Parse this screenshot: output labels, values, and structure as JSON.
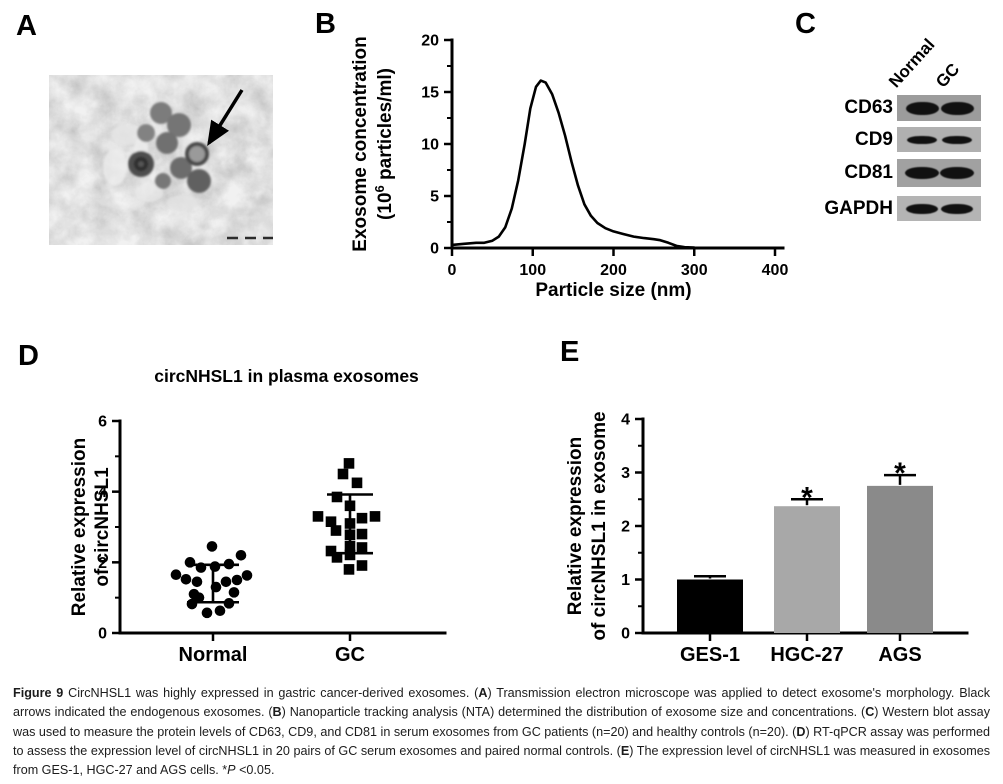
{
  "panels": {
    "a": {
      "label": "A",
      "content": "transmission electron microscope image of exosomes",
      "arrow": "black arrow pointing to exosome",
      "scalebar_dashes": 3
    },
    "b": {
      "label": "B"
    },
    "c": {
      "label": "C",
      "lanes": [
        "Normal",
        "GC"
      ],
      "rows": [
        {
          "protein": "CD63",
          "strip_bg": "#9c9c9c",
          "band_width": 33,
          "band_height": 13
        },
        {
          "protein": "CD9",
          "strip_bg": "#b0b0b0",
          "band_width": 30,
          "band_height": 8
        },
        {
          "protein": "CD81",
          "strip_bg": "#a1a1a1",
          "band_width": 34,
          "band_height": 12
        },
        {
          "protein": "GAPDH",
          "strip_bg": "#b4b4b4",
          "band_width": 32,
          "band_height": 10
        }
      ]
    },
    "d": {
      "label": "D"
    },
    "e": {
      "label": "E"
    }
  },
  "chart_data": [
    {
      "id": "nta-line",
      "type": "line",
      "xlabel": "Particle size (nm)",
      "ylabel_line1": "Exosome concentration",
      "ylabel_line2_pre": "(10",
      "ylabel_line2_sup": "6",
      "ylabel_line2_post": " particles/ml)",
      "xlim": [
        0,
        400
      ],
      "ylim": [
        0,
        20
      ],
      "xticks": [
        0,
        100,
        200,
        300,
        400
      ],
      "yticks": [
        0,
        5,
        10,
        15,
        20
      ],
      "yminor": [
        2.5,
        7.5,
        12.5,
        17.5
      ],
      "grid": false,
      "legend": "none",
      "points": [
        [
          0,
          0.3
        ],
        [
          15,
          0.4
        ],
        [
          30,
          0.5
        ],
        [
          40,
          0.5
        ],
        [
          50,
          0.7
        ],
        [
          58,
          1.1
        ],
        [
          66,
          2.0
        ],
        [
          74,
          3.8
        ],
        [
          82,
          6.5
        ],
        [
          90,
          10.0
        ],
        [
          97,
          13.4
        ],
        [
          104,
          15.5
        ],
        [
          110,
          16.1
        ],
        [
          116,
          15.9
        ],
        [
          124,
          14.8
        ],
        [
          132,
          13.0
        ],
        [
          140,
          10.8
        ],
        [
          148,
          8.3
        ],
        [
          156,
          6.0
        ],
        [
          164,
          4.2
        ],
        [
          172,
          3.1
        ],
        [
          180,
          2.4
        ],
        [
          190,
          1.9
        ],
        [
          200,
          1.6
        ],
        [
          212,
          1.35
        ],
        [
          225,
          1.1
        ],
        [
          238,
          0.95
        ],
        [
          250,
          0.85
        ],
        [
          258,
          0.75
        ],
        [
          268,
          0.5
        ],
        [
          278,
          0.2
        ],
        [
          288,
          0.08
        ],
        [
          300,
          0.05
        ]
      ]
    },
    {
      "id": "plasma-scatter",
      "type": "scatter",
      "title": "circNHSL1 in plasma exosomes",
      "ylabel_line1": "Relative expression",
      "ylabel_line2": "of circNHSL1",
      "ylim": [
        0,
        6
      ],
      "yticks": [
        0,
        2,
        4,
        6
      ],
      "yminor": [
        1,
        3,
        5
      ],
      "grid": false,
      "legend": "none",
      "groups": [
        {
          "name": "Normal",
          "marker": "circle",
          "n": 20,
          "whisker_top": 1.93,
          "whisker_bottom": 0.87,
          "cap_half": 26,
          "points": [
            [
              -1,
              2.45
            ],
            [
              28,
              2.2
            ],
            [
              16,
              1.95
            ],
            [
              -23,
              2.0
            ],
            [
              -12,
              1.85
            ],
            [
              2,
              1.88
            ],
            [
              -37,
              1.65
            ],
            [
              34,
              1.63
            ],
            [
              -27,
              1.52
            ],
            [
              24,
              1.5
            ],
            [
              13,
              1.45
            ],
            [
              -16,
              1.45
            ],
            [
              3,
              1.3
            ],
            [
              21,
              1.15
            ],
            [
              -19,
              1.1
            ],
            [
              -14,
              1.0
            ],
            [
              16,
              0.84
            ],
            [
              -21,
              0.82
            ],
            [
              7,
              0.63
            ],
            [
              -6,
              0.57
            ]
          ]
        },
        {
          "name": "GC",
          "marker": "square",
          "n": 20,
          "whisker_top": 3.92,
          "whisker_bottom": 2.26,
          "cap_half": 23,
          "points": [
            [
              -1,
              4.8
            ],
            [
              -7,
              4.5
            ],
            [
              7,
              4.25
            ],
            [
              -13,
              3.85
            ],
            [
              0,
              3.6
            ],
            [
              -32,
              3.3
            ],
            [
              25,
              3.3
            ],
            [
              12,
              3.25
            ],
            [
              -19,
              3.15
            ],
            [
              0,
              3.1
            ],
            [
              -14,
              2.9
            ],
            [
              12,
              2.8
            ],
            [
              0,
              2.78
            ],
            [
              0,
              2.46
            ],
            [
              12,
              2.42
            ],
            [
              -19,
              2.32
            ],
            [
              0,
              2.21
            ],
            [
              -13,
              2.14
            ],
            [
              12,
              1.91
            ],
            [
              -1,
              1.8
            ]
          ]
        }
      ]
    },
    {
      "id": "cell-line-bars",
      "type": "bar",
      "ylabel_line1": "Relative expression",
      "ylabel_line2": "of circNHSL1 in exosome",
      "ylim": [
        0,
        4
      ],
      "yticks": [
        0,
        1,
        2,
        3,
        4
      ],
      "yminor": [
        0.5,
        1.5,
        2.5,
        3.5
      ],
      "grid": false,
      "legend": "none",
      "categories": [
        "GES-1",
        "HGC-27",
        "AGS"
      ],
      "values": [
        1.0,
        2.37,
        2.75
      ],
      "errors": [
        0.06,
        0.13,
        0.2
      ],
      "bar_colors": [
        "#000000",
        "#a8a8a8",
        "#8a8a8a"
      ],
      "significance": [
        "",
        "*",
        "*"
      ]
    }
  ],
  "caption": {
    "segments": [
      {
        "t": "Figure 9 ",
        "b": 1
      },
      {
        "t": "CircNHSL1 was highly expressed in gastric cancer-derived exosomes. ("
      },
      {
        "t": "A",
        "b": 1
      },
      {
        "t": ") Transmission electron microscope was applied to detect exosome's morphology. Black arrows indicated the endogenous exosomes. ("
      },
      {
        "t": "B",
        "b": 1
      },
      {
        "t": ") Nanoparticle tracking analysis (NTA) determined the distribution of exosome size and concentrations. ("
      },
      {
        "t": "C",
        "b": 1
      },
      {
        "t": ") Western blot assay was used to measure the protein levels of CD63, CD9, and CD81 in serum exosomes from GC patients (n=20) and healthy controls (n=20). ("
      },
      {
        "t": "D",
        "b": 1
      },
      {
        "t": ") RT-qPCR assay was performed to assess the expression level of circNHSL1 in 20 pairs of GC serum exosomes and paired normal controls. ("
      },
      {
        "t": "E",
        "b": 1
      },
      {
        "t": ") The expression level of circNHSL1 was measured in exosomes from GES-1, HGC-27 and AGS cells. *"
      },
      {
        "t": "P",
        "i": 1
      },
      {
        "t": " <0.05."
      }
    ]
  }
}
